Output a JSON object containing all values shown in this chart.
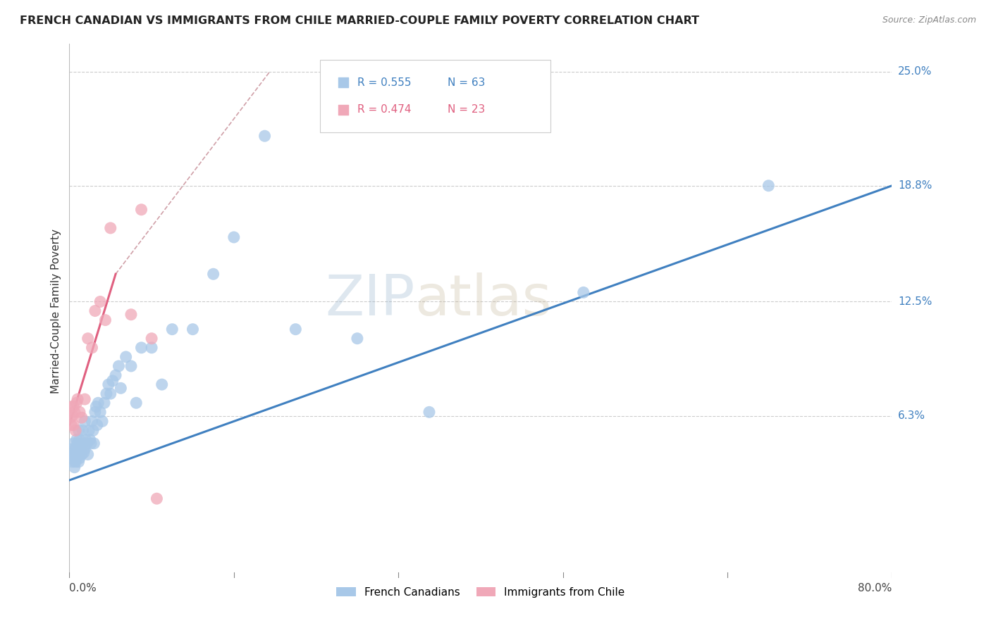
{
  "title": "FRENCH CANADIAN VS IMMIGRANTS FROM CHILE MARRIED-COUPLE FAMILY POVERTY CORRELATION CHART",
  "source": "Source: ZipAtlas.com",
  "xlabel_bottom_left": "0.0%",
  "xlabel_bottom_right": "80.0%",
  "ylabel": "Married-Couple Family Poverty",
  "ytick_labels": [
    "6.3%",
    "12.5%",
    "18.8%",
    "25.0%"
  ],
  "ytick_values": [
    0.063,
    0.125,
    0.188,
    0.25
  ],
  "xmin": 0.0,
  "xmax": 0.8,
  "ymin": -0.025,
  "ymax": 0.265,
  "watermark_part1": "ZIP",
  "watermark_part2": "atlas",
  "legend_blue_r": "R = 0.555",
  "legend_blue_n": "N = 63",
  "legend_pink_r": "R = 0.474",
  "legend_pink_n": "N = 23",
  "label_blue": "French Canadians",
  "label_pink": "Immigrants from Chile",
  "color_blue": "#A8C8E8",
  "color_pink": "#F0A8B8",
  "line_blue": "#4080C0",
  "line_pink": "#E06080",
  "line_dashed_color": "#D0A0A8",
  "blue_points_x": [
    0.002,
    0.003,
    0.003,
    0.004,
    0.004,
    0.005,
    0.005,
    0.006,
    0.006,
    0.007,
    0.007,
    0.008,
    0.008,
    0.009,
    0.009,
    0.01,
    0.01,
    0.011,
    0.012,
    0.013,
    0.013,
    0.014,
    0.015,
    0.015,
    0.016,
    0.017,
    0.018,
    0.019,
    0.02,
    0.021,
    0.022,
    0.023,
    0.024,
    0.025,
    0.026,
    0.027,
    0.028,
    0.03,
    0.032,
    0.034,
    0.036,
    0.038,
    0.04,
    0.042,
    0.045,
    0.048,
    0.05,
    0.055,
    0.06,
    0.065,
    0.07,
    0.08,
    0.09,
    0.1,
    0.12,
    0.14,
    0.16,
    0.19,
    0.22,
    0.28,
    0.35,
    0.5,
    0.68
  ],
  "blue_points_y": [
    0.042,
    0.038,
    0.045,
    0.04,
    0.048,
    0.035,
    0.042,
    0.038,
    0.045,
    0.04,
    0.05,
    0.043,
    0.048,
    0.038,
    0.055,
    0.04,
    0.05,
    0.045,
    0.042,
    0.048,
    0.055,
    0.043,
    0.06,
    0.045,
    0.05,
    0.048,
    0.042,
    0.055,
    0.05,
    0.048,
    0.06,
    0.055,
    0.048,
    0.065,
    0.068,
    0.058,
    0.07,
    0.065,
    0.06,
    0.07,
    0.075,
    0.08,
    0.075,
    0.082,
    0.085,
    0.09,
    0.078,
    0.095,
    0.09,
    0.07,
    0.1,
    0.1,
    0.08,
    0.11,
    0.11,
    0.14,
    0.16,
    0.215,
    0.11,
    0.105,
    0.065,
    0.13,
    0.188
  ],
  "pink_points_x": [
    0.001,
    0.002,
    0.002,
    0.003,
    0.004,
    0.004,
    0.005,
    0.006,
    0.007,
    0.008,
    0.01,
    0.012,
    0.015,
    0.018,
    0.022,
    0.025,
    0.03,
    0.035,
    0.04,
    0.06,
    0.07,
    0.08,
    0.085
  ],
  "pink_points_y": [
    0.062,
    0.058,
    0.068,
    0.063,
    0.058,
    0.068,
    0.065,
    0.055,
    0.07,
    0.072,
    0.065,
    0.062,
    0.072,
    0.105,
    0.1,
    0.12,
    0.125,
    0.115,
    0.165,
    0.118,
    0.175,
    0.105,
    0.018
  ],
  "blue_line_x": [
    0.0,
    0.8
  ],
  "blue_line_y": [
    0.028,
    0.188
  ],
  "pink_line_x": [
    0.0,
    0.045
  ],
  "pink_line_y": [
    0.058,
    0.14
  ],
  "dashed_line_x": [
    0.045,
    0.195
  ],
  "dashed_line_y": [
    0.14,
    0.25
  ]
}
